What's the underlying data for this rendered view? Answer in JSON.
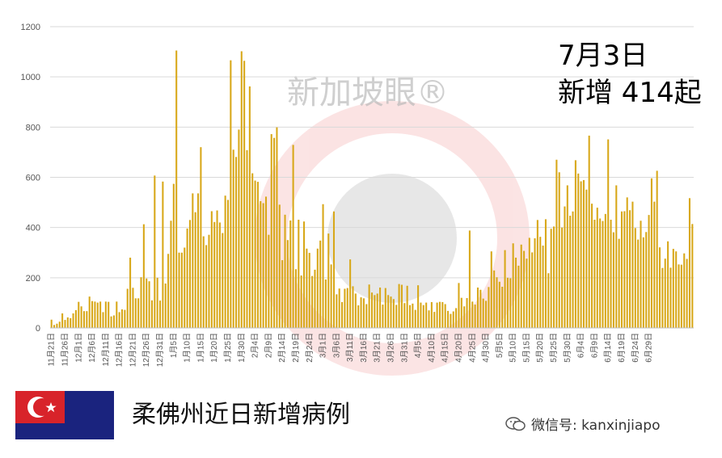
{
  "chart_data": {
    "type": "bar",
    "title": "",
    "xlabel": "",
    "ylabel": "",
    "ylim": [
      0,
      1200
    ],
    "yticks": [
      0,
      200,
      400,
      600,
      800,
      1000,
      1200
    ],
    "grid": true,
    "legend": "none",
    "bar_color": "#d8a81a",
    "x_tick_labels": [
      "11月21日",
      "11月26日",
      "12月1日",
      "12月6日",
      "12月11日",
      "12月16日",
      "12月21日",
      "12月26日",
      "12月31日",
      "1月5日",
      "1月10日",
      "1月15日",
      "1月20日",
      "1月25日",
      "1月30日",
      "2月4日",
      "2月9日",
      "2月14日",
      "2月19日",
      "2月24日",
      "3月1日",
      "3月6日",
      "3月11日",
      "3月16日",
      "3月21日",
      "3月26日",
      "3月31日",
      "4月5日",
      "4月10日",
      "4月15日",
      "4月20日",
      "4月25日",
      "4月30日",
      "5月5日",
      "5月10日",
      "5月15日",
      "5月20日",
      "5月25日",
      "5月30日",
      "6月4日",
      "6月9日",
      "6月14日",
      "6月19日",
      "6月24日",
      "6月29日"
    ],
    "values": [
      33,
      12,
      17,
      25,
      58,
      32,
      42,
      39,
      58,
      71,
      104,
      86,
      67,
      67,
      125,
      107,
      105,
      101,
      105,
      63,
      105,
      104,
      46,
      50,
      105,
      63,
      74,
      72,
      156,
      280,
      160,
      118,
      118,
      202,
      413,
      197,
      186,
      110,
      607,
      200,
      109,
      583,
      177,
      295,
      427,
      574,
      1105,
      300,
      300,
      320,
      396,
      430,
      536,
      461,
      536,
      720,
      365,
      330,
      371,
      465,
      422,
      468,
      420,
      378,
      527,
      510,
      1066,
      710,
      681,
      790,
      1102,
      1064,
      708,
      962,
      616,
      587,
      582,
      505,
      497,
      523,
      371,
      772,
      757,
      799,
      491,
      270,
      451,
      350,
      428,
      729,
      234,
      431,
      209,
      424,
      316,
      299,
      207,
      232,
      316,
      348,
      493,
      193,
      376,
      253,
      464,
      134,
      157,
      103,
      156,
      159,
      273,
      166,
      137,
      90,
      122,
      118,
      95,
      173,
      141,
      131,
      137,
      161,
      93,
      159,
      131,
      125,
      115,
      92,
      175,
      172,
      99,
      168,
      91,
      97,
      72,
      170,
      101,
      91,
      101,
      70,
      103,
      64,
      101,
      104,
      103,
      95,
      68,
      56,
      66,
      79,
      179,
      120,
      86,
      119,
      388,
      105,
      93,
      161,
      152,
      117,
      108,
      163,
      305,
      229,
      202,
      184,
      164,
      310,
      200,
      198,
      337,
      280,
      248,
      332,
      307,
      276,
      359,
      301,
      357,
      430,
      363,
      328,
      433,
      218,
      395,
      404,
      670,
      620,
      400,
      484,
      568,
      447,
      464,
      668,
      615,
      584,
      589,
      551,
      766,
      495,
      431,
      479,
      436,
      426,
      454,
      751,
      431,
      381,
      568,
      355,
      464,
      465,
      520,
      469,
      503,
      398,
      352,
      427,
      361,
      382,
      450,
      596,
      503,
      626,
      321,
      239,
      276,
      345,
      240,
      315,
      305,
      253,
      252,
      297,
      275,
      517,
      414
    ]
  },
  "annotation": {
    "date": "7月3日",
    "count_text": "新增 414起"
  },
  "caption": "柔佛州近日新增病例",
  "wechat": {
    "label": "微信号: kanxinjiapo",
    "icon": "wechat-icon"
  },
  "watermark": {
    "text": "新加坡眼®"
  },
  "flag": {
    "name": "johor-flag",
    "colors": {
      "red": "#d8232a",
      "blue": "#1a237e",
      "white": "#ffffff"
    }
  }
}
